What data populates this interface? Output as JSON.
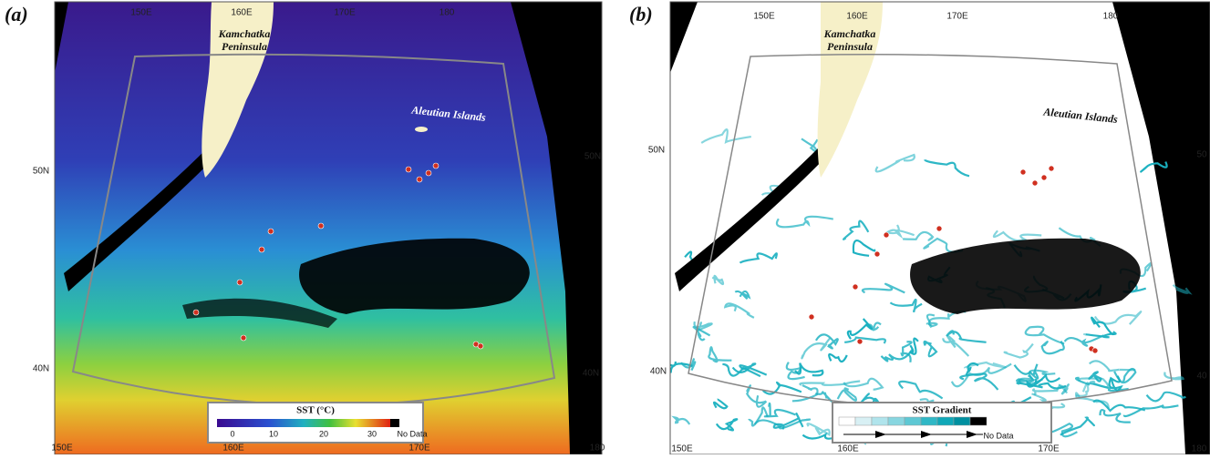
{
  "panels": [
    {
      "label": "(a)",
      "top_ticks": [
        "150E",
        "160E",
        "170E",
        "180"
      ],
      "bottom_ticks": [
        "150E",
        "160E",
        "170E",
        "180"
      ],
      "left_ticks": [
        "50N",
        "40N"
      ],
      "right_ticks": [
        "50N",
        "40N"
      ],
      "kamchatka": [
        "Kamchatka",
        "Peninsula"
      ],
      "aleutian": "Aleutian Islands",
      "legend": {
        "title": "SST (°C)",
        "ticks": [
          "0",
          "10",
          "20",
          "30"
        ],
        "no_data": "No Data"
      }
    },
    {
      "label": "(b)",
      "top_ticks": [
        "150E",
        "160E",
        "170E",
        "180"
      ],
      "bottom_ticks": [
        "150E",
        "160E",
        "170E",
        "180"
      ],
      "left_ticks": [
        "50N",
        "40N"
      ],
      "right_ticks": [
        "50",
        "40"
      ],
      "kamchatka": [
        "Kamchatka",
        "Peninsula"
      ],
      "aleutian": "Aleutian Islands",
      "legend": {
        "title": "SST Gradient",
        "no_data": "No Data"
      }
    }
  ]
}
